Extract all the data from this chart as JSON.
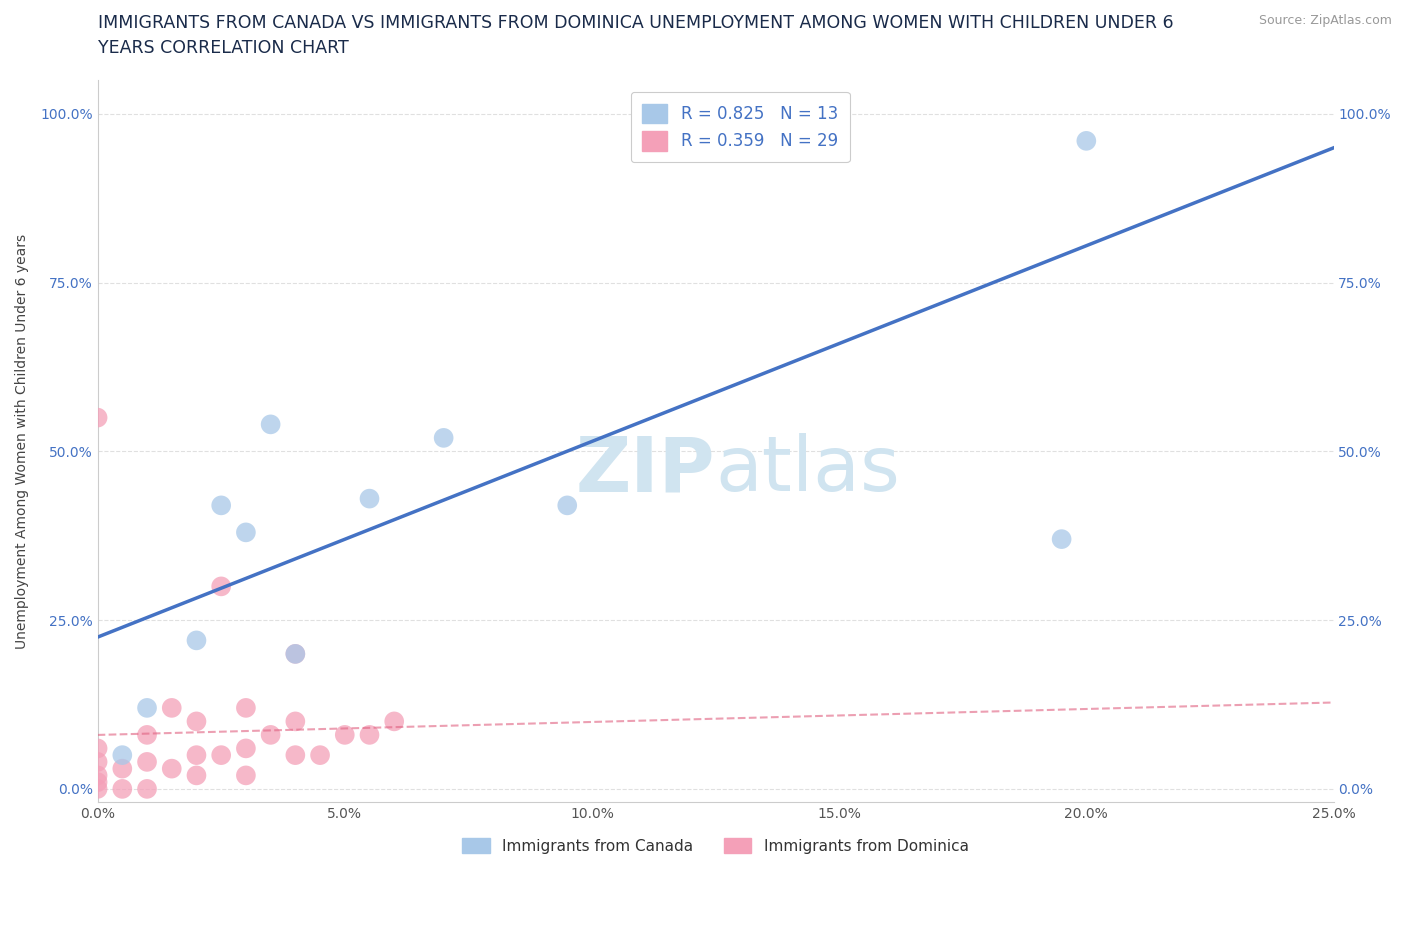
{
  "title_line1": "IMMIGRANTS FROM CANADA VS IMMIGRANTS FROM DOMINICA UNEMPLOYMENT AMONG WOMEN WITH CHILDREN UNDER 6",
  "title_line2": "YEARS CORRELATION CHART",
  "source_text": "Source: ZipAtlas.com",
  "ylabel": "Unemployment Among Women with Children Under 6 years",
  "xlim": [
    0.0,
    0.25
  ],
  "ylim": [
    0.0,
    1.05
  ],
  "xtick_labels": [
    "0.0%",
    "5.0%",
    "10.0%",
    "15.0%",
    "20.0%",
    "25.0%"
  ],
  "xtick_vals": [
    0.0,
    0.05,
    0.1,
    0.15,
    0.2,
    0.25
  ],
  "ytick_labels": [
    "0.0%",
    "25.0%",
    "50.0%",
    "75.0%",
    "100.0%"
  ],
  "ytick_vals": [
    0.0,
    0.25,
    0.5,
    0.75,
    1.0
  ],
  "canada_color": "#a8c8e8",
  "dominica_color": "#f4a0b8",
  "canada_line_color": "#4472c4",
  "dominica_line_color": "#e06080",
  "canada_R": 0.825,
  "canada_N": 13,
  "dominica_R": 0.359,
  "dominica_N": 29,
  "canada_x": [
    0.005,
    0.01,
    0.02,
    0.025,
    0.03,
    0.035,
    0.04,
    0.055,
    0.07,
    0.095,
    0.14,
    0.195,
    0.2
  ],
  "canada_y": [
    0.05,
    0.12,
    0.22,
    0.42,
    0.38,
    0.54,
    0.2,
    0.43,
    0.52,
    0.42,
    0.96,
    0.37,
    0.96
  ],
  "dominica_x": [
    0.0,
    0.0,
    0.0,
    0.0,
    0.0,
    0.0,
    0.005,
    0.005,
    0.01,
    0.01,
    0.01,
    0.015,
    0.015,
    0.02,
    0.02,
    0.02,
    0.025,
    0.025,
    0.03,
    0.03,
    0.03,
    0.035,
    0.04,
    0.04,
    0.04,
    0.045,
    0.05,
    0.055,
    0.06
  ],
  "dominica_y": [
    0.0,
    0.01,
    0.02,
    0.04,
    0.06,
    0.55,
    0.0,
    0.03,
    0.0,
    0.04,
    0.08,
    0.03,
    0.12,
    0.02,
    0.05,
    0.1,
    0.05,
    0.3,
    0.02,
    0.06,
    0.12,
    0.08,
    0.05,
    0.1,
    0.2,
    0.05,
    0.08,
    0.08,
    0.1
  ],
  "title_color": "#1a2b4a",
  "title_fontsize": 12.5,
  "axis_label_fontsize": 10,
  "tick_fontsize": 10,
  "legend_fontsize": 12,
  "watermark_color": "#d0e4f0",
  "watermark_fontsize": 55,
  "grid_color": "#e0e0e0"
}
